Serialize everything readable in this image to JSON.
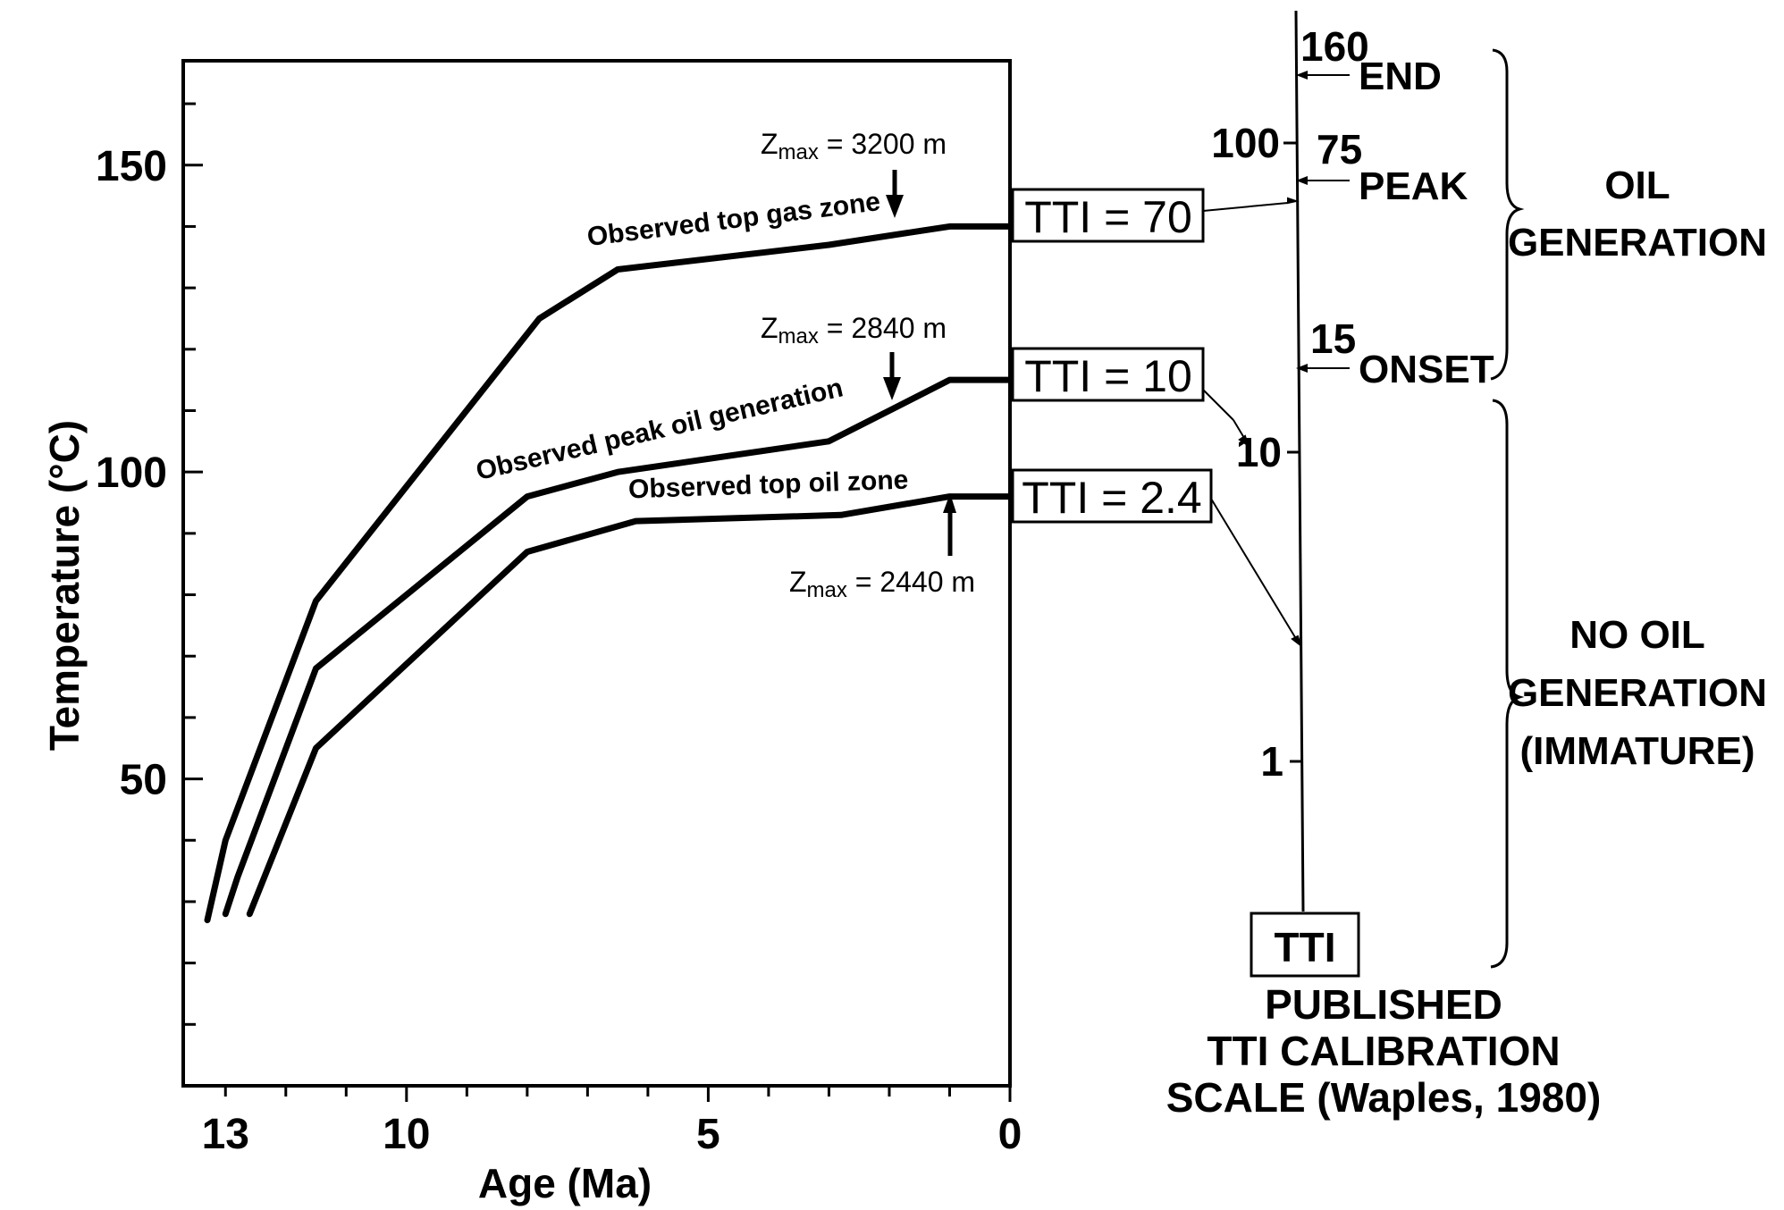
{
  "chart_data": {
    "type": "line",
    "xlabel": "Age (Ma)",
    "ylabel": "Temperature (°C)",
    "xlim": [
      13.7,
      0
    ],
    "ylim": [
      0,
      167
    ],
    "x_ticks": [
      "13",
      "10",
      "5",
      "0"
    ],
    "y_ticks": [
      "150",
      "100",
      "50"
    ],
    "series": [
      {
        "name": "Observed top gas zone",
        "x": [
          13.3,
          13.0,
          11.5,
          7.8,
          6.5,
          3.0,
          1.0,
          0
        ],
        "y": [
          27,
          40,
          79,
          125,
          133,
          137,
          140,
          140
        ]
      },
      {
        "name": "Observed peak oil generation",
        "x": [
          13.0,
          12.8,
          11.5,
          8.0,
          6.5,
          3.0,
          2.0,
          1.0,
          0
        ],
        "y": [
          28,
          34,
          68,
          96,
          100,
          105,
          110,
          115,
          115
        ]
      },
      {
        "name": "Observed top oil zone",
        "x": [
          12.6,
          11.5,
          8.0,
          6.2,
          2.8,
          1.0,
          0
        ],
        "y": [
          28,
          55,
          87,
          92,
          93,
          96,
          96
        ]
      }
    ],
    "zmax_annotations": [
      {
        "label": "Zmax = 3200 m",
        "prefix": "Z",
        "sub": "max",
        "suffix": " = 3200 m",
        "x": 2.0,
        "arrow": "down"
      },
      {
        "label": "Zmax = 2840 m",
        "prefix": "Z",
        "sub": "max",
        "suffix": " = 2840 m",
        "x": 2.0,
        "arrow": "down"
      },
      {
        "label": "Zmax = 2440 m",
        "prefix": "Z",
        "sub": "max",
        "suffix": " = 2440 m",
        "x": 1.0,
        "arrow": "up"
      }
    ],
    "tti_results": [
      "TTI = 70",
      "TTI = 10",
      "TTI = 2.4"
    ],
    "calibration_scale": {
      "ticks": [
        "100",
        "10",
        "1"
      ],
      "markers": [
        {
          "value": "160",
          "label": "END"
        },
        {
          "value": "75",
          "label": "PEAK"
        },
        {
          "value": "15",
          "label": "ONSET"
        }
      ],
      "axis_label": "TTI",
      "regions": [
        {
          "lines": [
            "OIL",
            "GENERATION"
          ]
        },
        {
          "lines": [
            "NO OIL",
            "GENERATION",
            "(IMMATURE)"
          ]
        }
      ],
      "caption": [
        "PUBLISHED",
        "TTI CALIBRATION",
        "SCALE (Waples, 1980)"
      ]
    }
  }
}
